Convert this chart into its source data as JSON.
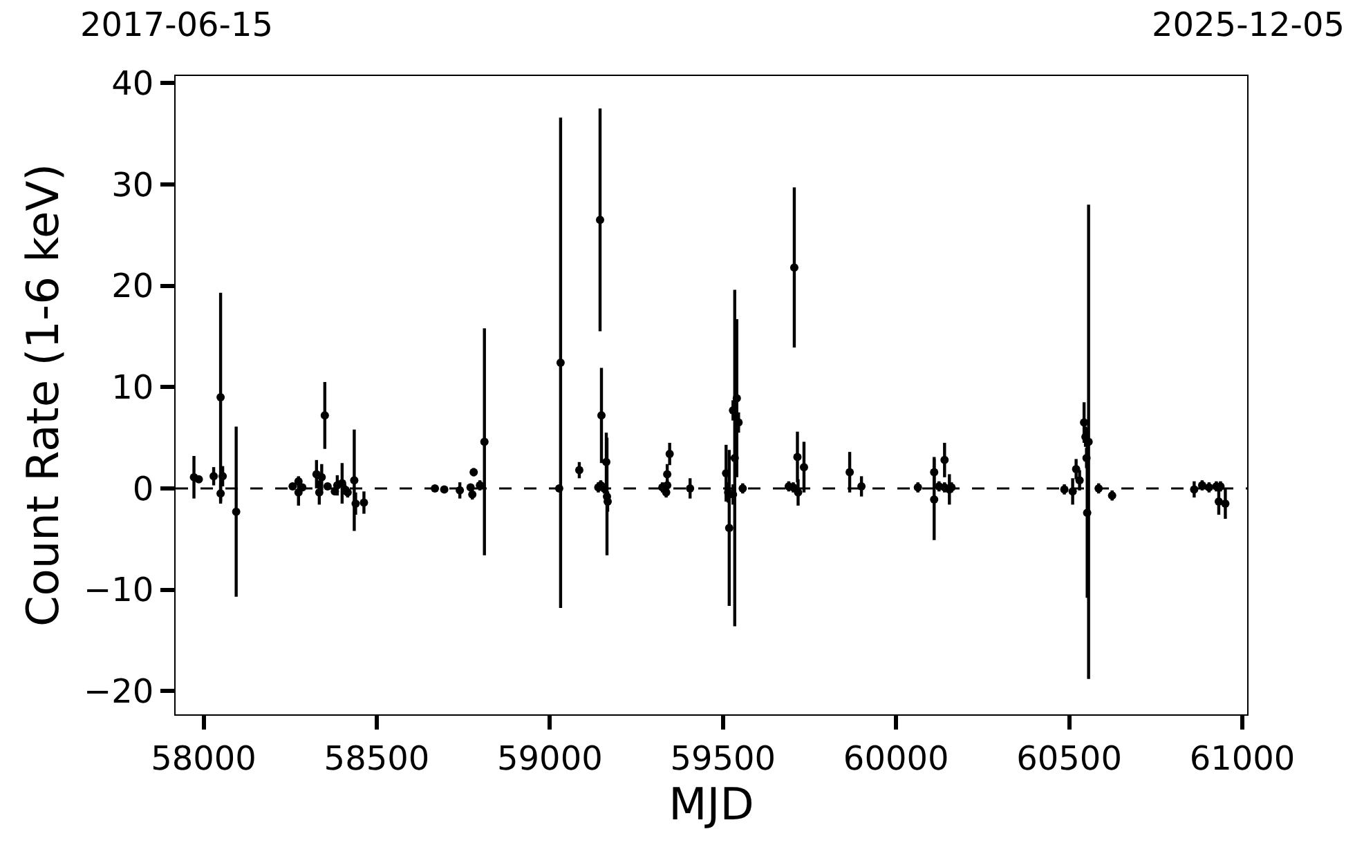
{
  "chart_data": {
    "type": "scatter",
    "xlabel": "MJD",
    "ylabel": "Count Rate (1-6 keV)",
    "x": [
      57972,
      57986,
      58029,
      58049,
      58055,
      58049,
      58094,
      58257,
      58274,
      58274,
      58285,
      58326,
      58341,
      58334,
      58350,
      58358,
      58379,
      58386,
      58400,
      58408,
      58416,
      58435,
      58439,
      58463,
      58668,
      58695,
      58740,
      58771,
      58780,
      58776,
      58798,
      58811,
      59031,
      59027,
      59085,
      59145,
      59149,
      59140,
      59147,
      59157,
      59163,
      59165,
      59167,
      59325,
      59336,
      59339,
      59339,
      59346,
      59405,
      59509,
      59518,
      59529,
      59534,
      59540,
      59545,
      59557,
      59515,
      59529,
      59690,
      59703,
      59706,
      59715,
      59717,
      59734,
      59866,
      59900,
      60063,
      60110,
      60110,
      60124,
      60140,
      60140,
      60154,
      60160,
      60486,
      60510,
      60520,
      60530,
      60543,
      60547,
      60552,
      60556,
      60550,
      60585,
      60624,
      60861,
      60884,
      60904,
      60925,
      60932,
      60937,
      60951
    ],
    "values": [
      1.1,
      0.9,
      1.2,
      9.0,
      1.2,
      -0.5,
      -2.3,
      0.2,
      0.7,
      -0.4,
      0.1,
      1.4,
      1.1,
      -0.4,
      7.2,
      0.2,
      -0.3,
      0.3,
      0.5,
      -0.1,
      -0.4,
      0.8,
      -1.5,
      -1.4,
      0.0,
      -0.1,
      -0.2,
      0.1,
      1.6,
      -0.6,
      0.3,
      4.6,
      12.4,
      0.0,
      1.8,
      26.5,
      7.2,
      0.1,
      0.3,
      0.0,
      2.6,
      -0.8,
      -1.3,
      0.1,
      -0.4,
      1.4,
      0.3,
      3.4,
      0.0,
      1.5,
      -3.9,
      7.7,
      3.0,
      8.9,
      6.5,
      0.0,
      -0.4,
      -0.6,
      0.2,
      0.1,
      21.8,
      3.1,
      -0.4,
      2.1,
      1.6,
      0.2,
      0.1,
      1.6,
      -1.1,
      0.2,
      2.8,
      0.1,
      -0.1,
      0.1,
      -0.1,
      -0.3,
      1.9,
      0.8,
      6.5,
      5.1,
      -2.4,
      4.6,
      3.0,
      0.0,
      -0.7,
      -0.1,
      0.3,
      0.1,
      0.2,
      -1.3,
      0.2,
      -1.5
    ],
    "errors": [
      2.1,
      0.3,
      0.9,
      10.3,
      1.0,
      1.0,
      8.4,
      0.3,
      0.5,
      1.3,
      0.3,
      1.4,
      1.3,
      1.2,
      3.3,
      0.3,
      0.3,
      1.0,
      2.0,
      0.5,
      0.5,
      5.0,
      1.1,
      1.1,
      0.3,
      0.3,
      0.8,
      0.3,
      0.4,
      0.5,
      0.5,
      11.2,
      24.2,
      0.3,
      0.8,
      11.0,
      4.7,
      0.5,
      0.5,
      0.5,
      2.9,
      5.8,
      1.0,
      0.5,
      0.5,
      1.0,
      0.5,
      1.1,
      1.0,
      2.8,
      7.7,
      1.0,
      16.6,
      7.8,
      1.0,
      0.5,
      1.0,
      1.0,
      0.5,
      0.5,
      7.9,
      2.5,
      1.3,
      2.5,
      2.0,
      1.0,
      0.5,
      1.5,
      4.0,
      0.5,
      1.7,
      0.5,
      1.5,
      0.5,
      0.5,
      1.3,
      1.0,
      1.0,
      2.0,
      1.0,
      8.4,
      23.4,
      1.0,
      0.5,
      0.5,
      0.8,
      0.5,
      0.5,
      0.5,
      1.3,
      0.5,
      1.5
    ],
    "color": "#000000",
    "marker": "circle",
    "xlim": [
      57919,
      61014
    ],
    "xticks": [
      58000,
      58500,
      59000,
      59500,
      60000,
      60500,
      61000
    ],
    "annotations": [
      "2017-06-15",
      "2025-12-05"
    ],
    "ylim": [
      -22.3,
      40.7
    ],
    "yticks": [
      -20,
      -10,
      0,
      10,
      20,
      30,
      40
    ],
    "ref_lines": [
      {
        "axis": "y",
        "value": 0,
        "label": null,
        "color": "#000000",
        "line_style": "dashed"
      }
    ],
    "grid": false,
    "legend": false
  }
}
